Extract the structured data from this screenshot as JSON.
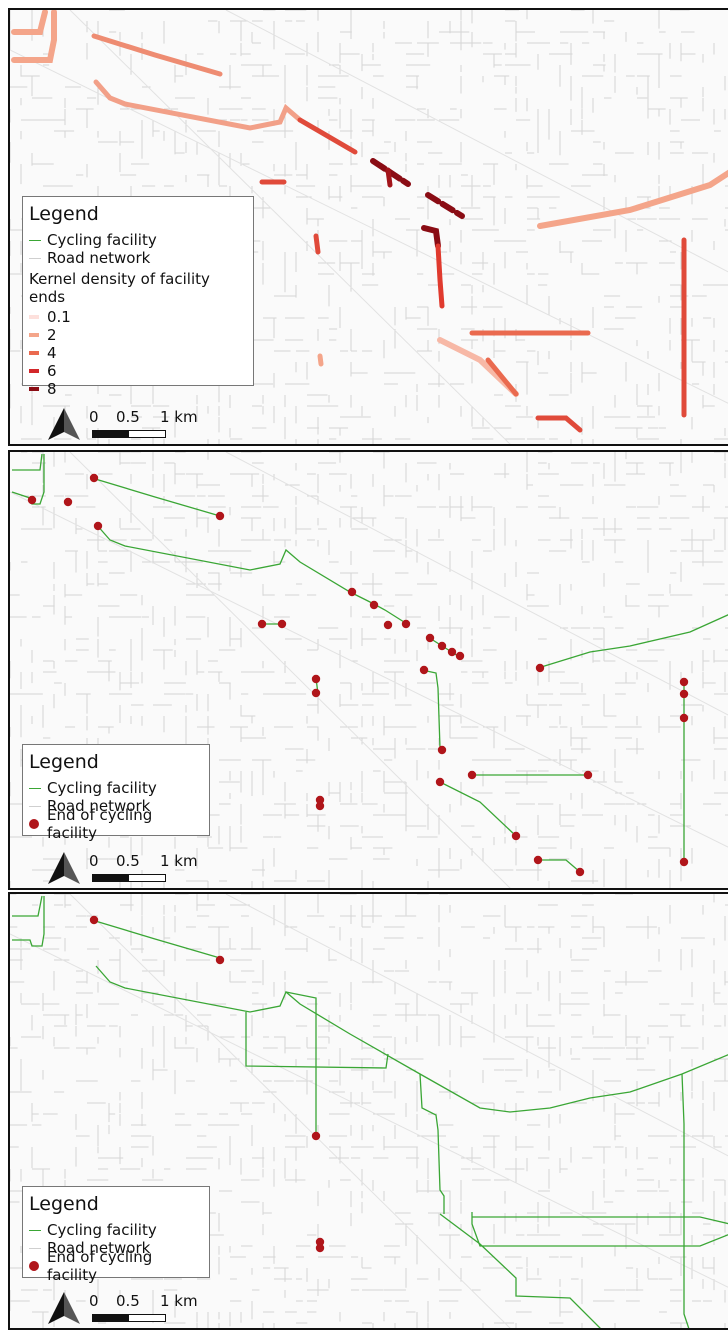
{
  "panels": [
    {
      "name": "kernel-density-panel",
      "legend": {
        "title": "Legend",
        "items": [
          {
            "label": "Cycling facility",
            "symbol": "green-line"
          },
          {
            "label": "Road network",
            "symbol": "gray-line"
          }
        ],
        "section_title": "Kernel density of facility ends",
        "classes": [
          {
            "label": "0.1",
            "color": "#fde0dc"
          },
          {
            "label": "2",
            "color": "#f4a58a"
          },
          {
            "label": "4",
            "color": "#ea6a4f"
          },
          {
            "label": "6",
            "color": "#d3272a"
          },
          {
            "label": "8",
            "color": "#8a0c14"
          }
        ]
      },
      "scale": {
        "zero": "0",
        "half": "0.5",
        "unit": "1 km"
      }
    },
    {
      "name": "facility-ends-panel",
      "legend": {
        "title": "Legend",
        "items": [
          {
            "label": "Cycling facility",
            "symbol": "green-line"
          },
          {
            "label": "Road network",
            "symbol": "gray-line"
          },
          {
            "label": "End of cycling facility",
            "symbol": "red-dot"
          }
        ]
      },
      "scale": {
        "zero": "0",
        "half": "0.5",
        "unit": "1 km"
      }
    },
    {
      "name": "connected-network-panel",
      "legend": {
        "title": "Legend",
        "items": [
          {
            "label": "Cycling facility",
            "symbol": "green-line"
          },
          {
            "label": "Road network",
            "symbol": "gray-line"
          },
          {
            "label": "End of cycling facility",
            "symbol": "red-dot"
          }
        ]
      },
      "scale": {
        "zero": "0",
        "half": "0.5",
        "unit": "1 km"
      }
    }
  ],
  "colors": {
    "cycling_facility": "#3aa635",
    "road_network": "#cfcfcf",
    "facility_end": "#b0151a"
  }
}
